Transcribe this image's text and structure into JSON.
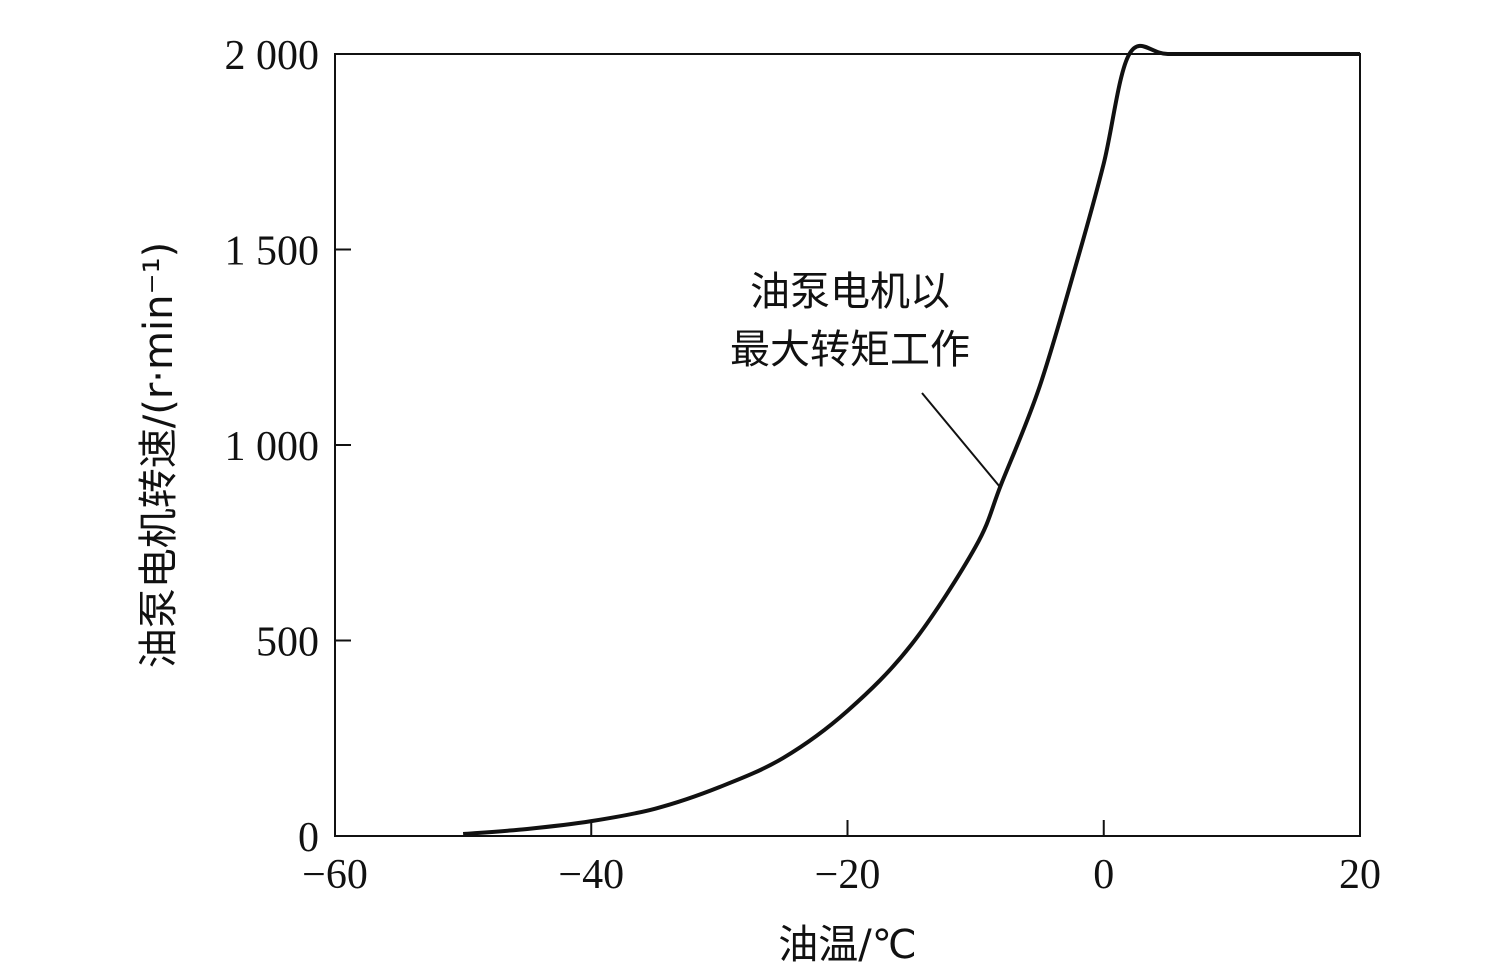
{
  "chart_data": {
    "type": "line",
    "xlabel": "油温/℃",
    "ylabel": "油泵电机转速/(r·min⁻¹)",
    "xlim": [
      -60,
      20
    ],
    "ylim": [
      0,
      2000
    ],
    "x_ticks": [
      -60,
      -40,
      -20,
      0,
      20
    ],
    "x_tick_labels": [
      "−60",
      "−40",
      "−20",
      "0",
      "20"
    ],
    "y_ticks": [
      0,
      500,
      1000,
      1500,
      2000
    ],
    "y_tick_labels": [
      "0",
      "500",
      "1 000",
      "1 500",
      "2 000"
    ],
    "grid": false,
    "series": [
      {
        "x": [
          -50,
          -45,
          -40,
          -35,
          -30,
          -25,
          -20,
          -15,
          -10,
          -8,
          -5,
          -2,
          0,
          2,
          5,
          10,
          15,
          20
        ],
        "y": [
          5,
          18,
          38,
          70,
          125,
          200,
          320,
          490,
          740,
          900,
          1150,
          1480,
          1720,
          2000,
          2000,
          2000,
          2000,
          2000
        ]
      }
    ],
    "annotations": [
      {
        "lines": [
          "油泵电机以",
          "最大转矩工作"
        ],
        "points_to": {
          "x": -8,
          "y": 900
        }
      }
    ]
  }
}
